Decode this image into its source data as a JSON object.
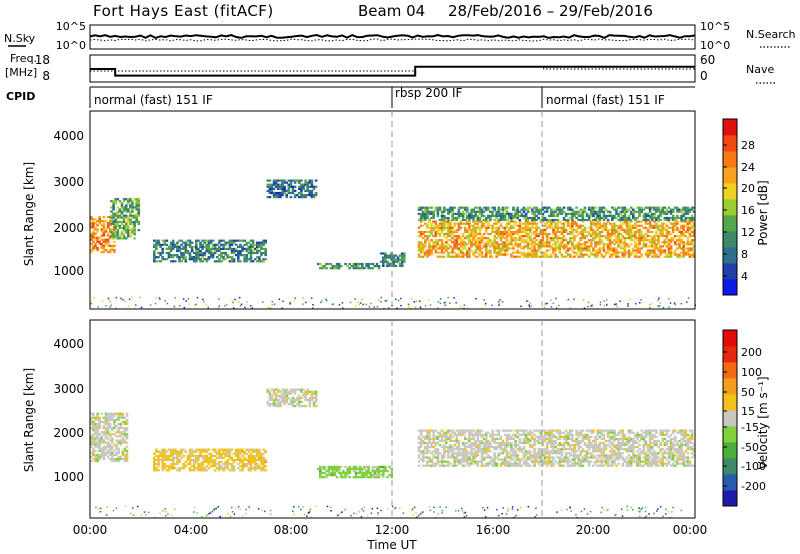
{
  "header": {
    "station": "Fort Hays East (fitACF)",
    "beam": "Beam 04",
    "date_range": "28/Feb/2016 – 29/Feb/2016"
  },
  "strip_nsky": {
    "label": "N.Sky",
    "ticks_left": [
      "10^5",
      "10^0"
    ],
    "ticks_right": [
      "10^5",
      "10^0"
    ],
    "right_label": "N.Search"
  },
  "strip_freq": {
    "label_line1": "Freq.",
    "label_line2": "[MHz]",
    "ticks_left": [
      "18",
      "8"
    ],
    "ticks_right": [
      "60",
      "0"
    ],
    "right_label": "Nave"
  },
  "cpid": {
    "label": "CPID",
    "modes": [
      {
        "text": "normal (fast) 151 IF",
        "start_hour": 0
      },
      {
        "text": "rbsp 200 IF",
        "start_hour": 12
      },
      {
        "text": "normal (fast) 151 IF",
        "start_hour": 18
      }
    ]
  },
  "power_panel": {
    "ylabel": "Slant Range [km]",
    "yticks": [
      "4000",
      "3000",
      "2000",
      "1000"
    ],
    "colorbar_label": "Power [dB]",
    "colorbar_ticks": [
      "28",
      "24",
      "20",
      "16",
      "12",
      "8",
      "4"
    ],
    "colors": [
      "#1018e6",
      "#2040a8",
      "#2e6f8e",
      "#3d8a66",
      "#55a84a",
      "#9acd32",
      "#f0d020",
      "#f6a21c",
      "#f77a14",
      "#f04a10",
      "#e01010"
    ]
  },
  "velocity_panel": {
    "ylabel": "Slant Range [km]",
    "yticks": [
      "4000",
      "3000",
      "2000",
      "1000"
    ],
    "colorbar_label": "Velocity [m s⁻¹]",
    "colorbar_ticks": [
      "200",
      "100",
      "50",
      "15",
      "-15",
      "-50",
      "-100",
      "-200"
    ],
    "colors": [
      "#1c1ca8",
      "#2a5ab0",
      "#3f8a66",
      "#4caf3c",
      "#7fd23c",
      "#c8c8c0",
      "#f2c21c",
      "#f59d1c",
      "#f46a12",
      "#e52a10",
      "#e00c0c"
    ]
  },
  "x_axis": {
    "tick_labels": [
      "00:00",
      "04:00",
      "08:00",
      "12:00",
      "16:00",
      "20:00",
      "00:00"
    ],
    "label": "Time UT"
  },
  "chart_data": [
    {
      "type": "line",
      "name": "N.Sky / N.Search",
      "x_range_hours": [
        0,
        24
      ],
      "ylim_log": [
        0,
        5
      ]
    },
    {
      "type": "line",
      "name": "Freq / Nave",
      "x": [
        0,
        1,
        1,
        12.9,
        12.9,
        24
      ],
      "freq_mhz": [
        13,
        13,
        10,
        10,
        14,
        14
      ],
      "ylim": [
        8,
        18
      ],
      "nave_ylim": [
        0,
        60
      ]
    },
    {
      "type": "heatmap",
      "name": "Power",
      "x_range_hours": [
        0,
        24
      ],
      "ylim_km": [
        180,
        4500
      ],
      "colorbar_range_db": [
        0,
        30
      ],
      "echo_regions": [
        {
          "t0": 0.0,
          "t1": 1.0,
          "r0": 1400,
          "r1": 2200,
          "value": 22
        },
        {
          "t0": 0.8,
          "t1": 2.0,
          "r0": 1700,
          "r1": 2600,
          "value": 12
        },
        {
          "t0": 2.5,
          "t1": 7.0,
          "r0": 1200,
          "r1": 1700,
          "value": 9
        },
        {
          "t0": 7.0,
          "t1": 9.0,
          "r0": 2600,
          "r1": 3000,
          "value": 7
        },
        {
          "t0": 9.0,
          "t1": 11.5,
          "r0": 1050,
          "r1": 1200,
          "value": 10
        },
        {
          "t0": 11.5,
          "t1": 12.5,
          "r0": 1100,
          "r1": 1400,
          "value": 8
        },
        {
          "t0": 13.0,
          "t1": 24.0,
          "r0": 1300,
          "r1": 2100,
          "value": 20
        },
        {
          "t0": 13.0,
          "t1": 24.0,
          "r0": 2100,
          "r1": 2400,
          "value": 10
        }
      ]
    },
    {
      "type": "heatmap",
      "name": "Velocity",
      "x_range_hours": [
        0,
        24
      ],
      "ylim_km": [
        180,
        4500
      ],
      "colorbar_range_ms": [
        -250,
        250
      ],
      "echo_regions": [
        {
          "t0": 0.0,
          "t1": 1.5,
          "r0": 1400,
          "r1": 2500,
          "value": 0
        },
        {
          "t0": 2.5,
          "t1": 7.0,
          "r0": 1200,
          "r1": 1700,
          "value": 40
        },
        {
          "t0": 7.0,
          "t1": 9.0,
          "r0": 2600,
          "r1": 3000,
          "value": 0
        },
        {
          "t0": 9.0,
          "t1": 12.0,
          "r0": 1050,
          "r1": 1300,
          "value": -40
        },
        {
          "t0": 13.0,
          "t1": 24.0,
          "r0": 1300,
          "r1": 2100,
          "value": 0
        }
      ]
    }
  ]
}
